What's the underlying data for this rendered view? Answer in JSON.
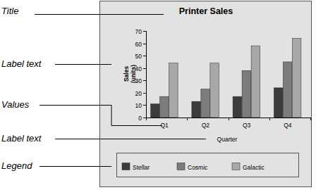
{
  "chart_data": {
    "type": "bar",
    "title": "Printer Sales",
    "x_label": "Quarter",
    "y_label": "Sales (units)",
    "categories": [
      "Q1",
      "Q2",
      "Q3",
      "Q4"
    ],
    "series": [
      {
        "name": "Stellar",
        "color": "#3c3c3c",
        "values": [
          11,
          13,
          17,
          24
        ]
      },
      {
        "name": "Cosmic",
        "color": "#7c7c7c",
        "values": [
          17,
          23,
          38,
          45
        ]
      },
      {
        "name": "Galactic",
        "color": "#a8a8a8",
        "values": [
          44,
          44,
          58,
          64
        ]
      }
    ],
    "ylim": [
      0,
      70
    ],
    "yticks": [
      0,
      10,
      20,
      30,
      40,
      50,
      60,
      70
    ],
    "grid": false,
    "legend": "bottom",
    "annotations": [
      "Title",
      "Label text",
      "Values",
      "Label text",
      "Legend"
    ]
  }
}
